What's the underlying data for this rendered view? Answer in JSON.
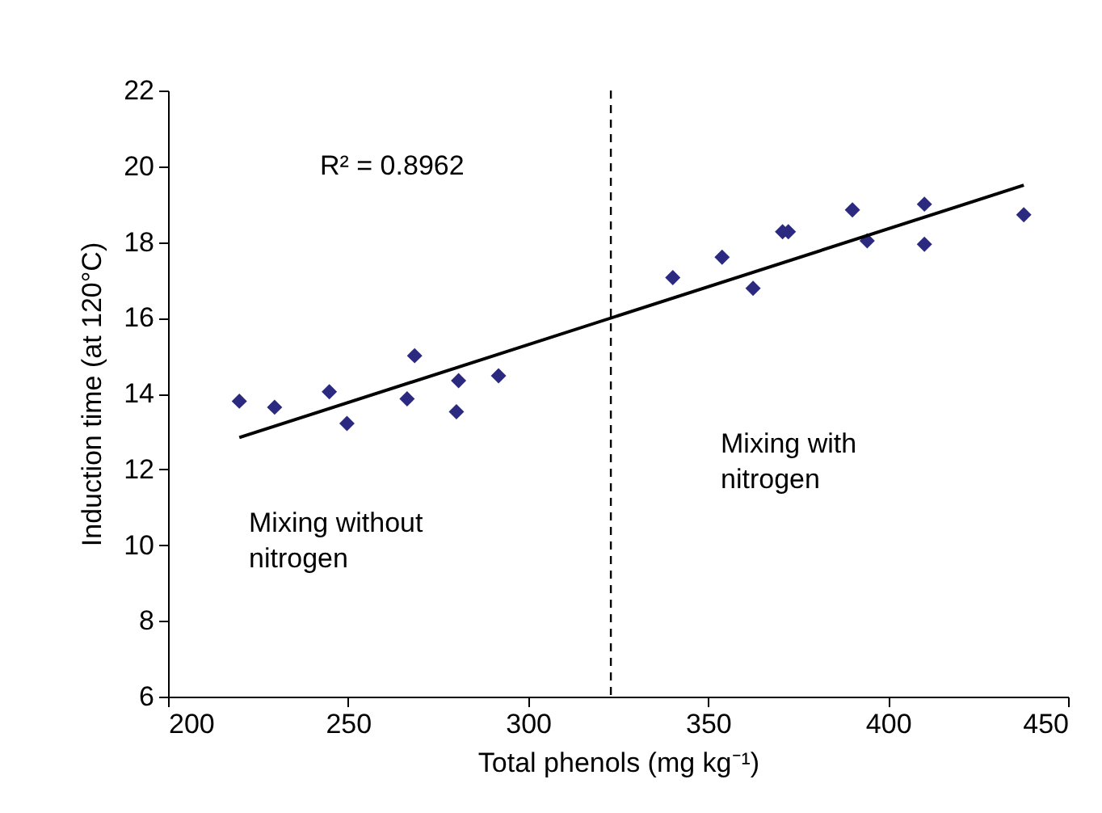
{
  "chart_data": {
    "type": "scatter",
    "xlabel": "Total phenols (mg kg⁻¹)",
    "ylabel": "Induction time (at 120°C)",
    "xlim": [
      200,
      450
    ],
    "xticks": [
      200,
      250,
      300,
      350,
      400,
      450
    ],
    "ylim": [
      6,
      22
    ],
    "yticks": [
      6,
      8,
      10,
      12,
      14,
      16,
      18,
      20,
      22
    ],
    "grid": false,
    "marker": "diamond",
    "series": [
      {
        "color": "#2b2a80",
        "x": [
          219.8,
          229.6,
          244.8,
          249.7,
          266.4,
          268.5,
          280.7,
          280.1,
          291.8,
          340.2,
          353.9,
          362.5,
          370.7,
          372.3,
          390.1,
          394.2,
          410.1,
          410.1,
          437.7
        ],
        "values": [
          13.8,
          13.64,
          14.05,
          13.21,
          13.86,
          15.0,
          14.34,
          13.52,
          14.47,
          17.06,
          17.6,
          16.78,
          18.27,
          18.27,
          18.85,
          18.03,
          19.0,
          17.94,
          18.72
        ]
      },
      {
        "type": "line",
        "color": "#000000",
        "line_style": "solid",
        "marker": "none",
        "x": [
          219.8,
          437.7
        ],
        "values": [
          12.84,
          19.5
        ]
      }
    ],
    "ref_lines": [
      {
        "axis": "x",
        "value": 323,
        "color": "#000000",
        "line_style": "dashed"
      }
    ],
    "annotations": [
      "R² = 0.8962",
      "Mixing without\nnitrogen",
      "Mixing with\nnitrogen"
    ]
  }
}
